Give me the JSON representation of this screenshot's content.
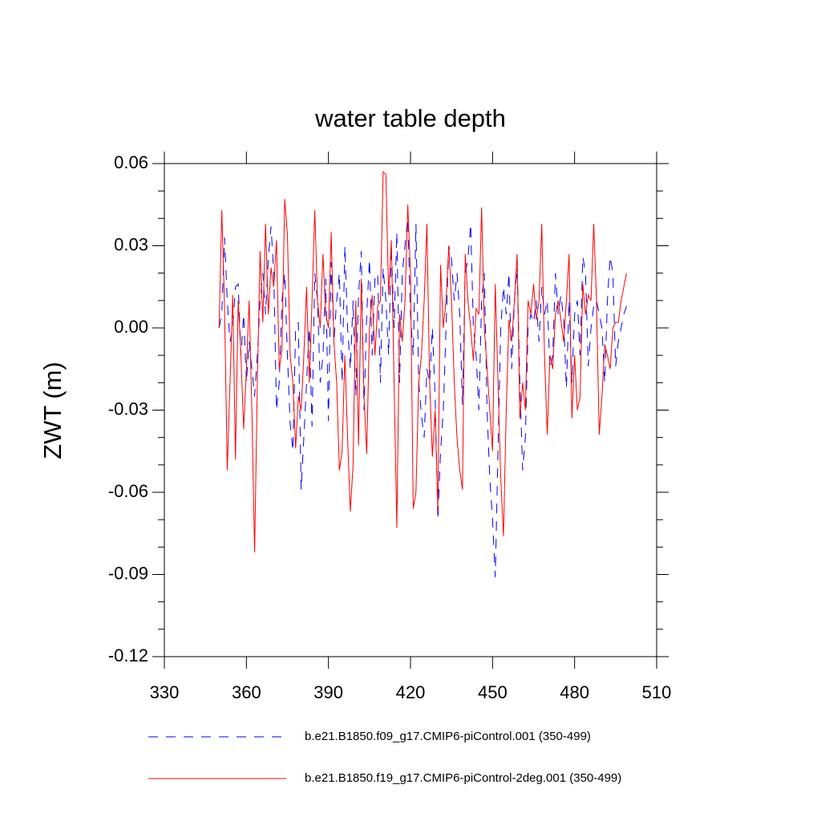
{
  "chart_data": {
    "type": "line",
    "title": "water table depth",
    "ylabel": "ZWT  (m)",
    "x": [
      350,
      351,
      352,
      353,
      354,
      355,
      356,
      357,
      358,
      359,
      360,
      361,
      362,
      363,
      364,
      365,
      366,
      367,
      368,
      369,
      370,
      371,
      372,
      373,
      374,
      375,
      376,
      377,
      378,
      379,
      380,
      381,
      382,
      383,
      384,
      385,
      386,
      387,
      388,
      389,
      390,
      391,
      392,
      393,
      394,
      395,
      396,
      397,
      398,
      399,
      400,
      401,
      402,
      403,
      404,
      405,
      406,
      407,
      408,
      409,
      410,
      411,
      412,
      413,
      414,
      415,
      416,
      417,
      418,
      419,
      420,
      421,
      422,
      423,
      424,
      425,
      426,
      427,
      428,
      429,
      430,
      431,
      432,
      433,
      434,
      435,
      436,
      437,
      438,
      439,
      440,
      441,
      442,
      443,
      444,
      445,
      446,
      447,
      448,
      449,
      450,
      451,
      452,
      453,
      454,
      455,
      456,
      457,
      458,
      459,
      460,
      461,
      462,
      463,
      464,
      465,
      466,
      467,
      468,
      469,
      470,
      471,
      472,
      473,
      474,
      475,
      476,
      477,
      478,
      479,
      480,
      481,
      482,
      483,
      484,
      485,
      486,
      487,
      488,
      489,
      490,
      491,
      492,
      493,
      494,
      495,
      496,
      497,
      498,
      499
    ],
    "series": [
      {
        "name": "b.e21.B1850.f09_g17.CMIP6-piControl.001 (350-499)",
        "color": "#0000ff",
        "dash": true,
        "values": [
          0,
          0.005,
          0.033,
          0.01,
          -0.005,
          0.0,
          0.015,
          0.016,
          -0.01,
          0.005,
          -0.02,
          -0.005,
          -0.015,
          -0.025,
          -0.01,
          0.01,
          0.02,
          0.005,
          0.025,
          0.037,
          0.02,
          -0.03,
          -0.02,
          0.01,
          0.02,
          -0.01,
          -0.035,
          -0.045,
          0.0,
          0.002,
          -0.059,
          -0.04,
          -0.02,
          0.0,
          -0.036,
          0.02,
          0.01,
          -0.02,
          -0.01,
          0.018,
          -0.034,
          0.024,
          -0.005,
          0.01,
          0.02,
          -0.02,
          0.03,
          0.0,
          -0.015,
          0.01,
          -0.025,
          0.012,
          0.028,
          -0.03,
          0.005,
          0.025,
          -0.01,
          0.018,
          0.02,
          -0.02,
          0.022,
          0.01,
          -0.01,
          0.03,
          0.0,
          0.035,
          -0.02,
          0.02,
          0.03,
          0.04,
          0.005,
          -0.01,
          0.038,
          -0.02,
          -0.032,
          -0.04,
          -0.015,
          -0.02,
          0.0,
          -0.025,
          -0.07,
          -0.045,
          -0.03,
          0.0,
          0.03,
          0.025,
          0.01,
          0.02,
          0.005,
          -0.028,
          0.02,
          0.025,
          0.038,
          0.0,
          -0.01,
          -0.03,
          0.01,
          0.02,
          -0.03,
          -0.055,
          -0.07,
          -0.091,
          -0.045,
          0.0,
          0.015,
          0.005,
          0.02,
          -0.015,
          0.01,
          0.022,
          -0.02,
          -0.052,
          -0.04,
          0.0,
          0.005,
          0.002,
          0.01,
          -0.005,
          0.015,
          0.005,
          0.01,
          -0.015,
          -0.01,
          0.02,
          0.005,
          0.012,
          0.003,
          -0.022,
          0.01,
          -0.02,
          0.005,
          0.01,
          -0.01,
          0.026,
          0.02,
          -0.014,
          0.0,
          0.008,
          0.01,
          0.005,
          0.0,
          -0.02,
          0.01,
          0.026,
          0.02,
          -0.014,
          -0.005,
          0.0,
          0.005,
          0.008
        ]
      },
      {
        "name": "b.e21.B1850.f19_g17.CMIP6-piControl-2deg.001 (350-499)",
        "color": "#ff0000",
        "dash": false,
        "values": [
          0,
          0.043,
          0.008,
          -0.052,
          -0.02,
          0.012,
          -0.048,
          0.01,
          -0.01,
          -0.037,
          -0.015,
          0.01,
          -0.03,
          -0.082,
          -0.02,
          0.028,
          0.002,
          0.038,
          0.005,
          0.022,
          0.015,
          0.032,
          -0.015,
          -0.008,
          0.047,
          0.034,
          -0.01,
          -0.02,
          -0.044,
          -0.025,
          -0.03,
          -0.01,
          0.015,
          -0.02,
          0.01,
          0.043,
          0.01,
          0,
          0.027,
          0.005,
          0,
          0.035,
          -0.005,
          -0.02,
          -0.052,
          -0.045,
          -0.01,
          -0.04,
          -0.067,
          -0.05,
          0.01,
          -0.043,
          0.018,
          -0.025,
          -0.046,
          0,
          0.012,
          -0.01,
          0.008,
          0.01,
          0.057,
          0.056,
          0.012,
          0.032,
          -0.02,
          -0.073,
          0.005,
          -0.005,
          0.01,
          0.045,
          0.02,
          -0.066,
          -0.06,
          -0.02,
          -0.01,
          0.01,
          0.038,
          -0.02,
          -0.047,
          -0.03,
          -0.067,
          0.023,
          0,
          0.01,
          0.03,
          0.01,
          -0.02,
          -0.04,
          -0.052,
          -0.059,
          0.027,
          0.01,
          0,
          -0.012,
          0.007,
          0.005,
          0.044,
          0,
          -0.015,
          -0.03,
          -0.045,
          0.016,
          -0.02,
          -0.055,
          -0.076,
          -0.03,
          0.003,
          -0.005,
          0.01,
          0.027,
          -0.033,
          -0.02,
          -0.03,
          0.01,
          0.005,
          0.016,
          0.003,
          0.01,
          0.038,
          -0.01,
          -0.039,
          -0.01,
          -0.015,
          0.005,
          0.01,
          0.003,
          -0.005,
          0.01,
          0.027,
          -0.033,
          -0.01,
          -0.03,
          -0.025,
          0.016,
          0.005,
          0.012,
          0.01,
          0.038,
          0.01,
          -0.039,
          -0.025,
          -0.006,
          -0.01,
          -0.015,
          0,
          0.002,
          0.002,
          0.01,
          0.015,
          0.02
        ]
      }
    ],
    "xlim": [
      330,
      510
    ],
    "xticks": [
      330,
      360,
      390,
      420,
      450,
      480,
      510
    ],
    "ylim": [
      -0.12,
      0.06
    ],
    "yticks": [
      0.06,
      0.03,
      {
        "value": 0,
        "label": "0.00"
      },
      -0.03,
      -0.06,
      -0.09,
      -0.12
    ],
    "yminorticks": [
      0.05,
      0.04,
      0.02,
      0.01,
      -0.01,
      -0.02,
      -0.04,
      -0.05,
      -0.07,
      -0.08,
      -0.1,
      -0.11
    ],
    "grid": false
  }
}
